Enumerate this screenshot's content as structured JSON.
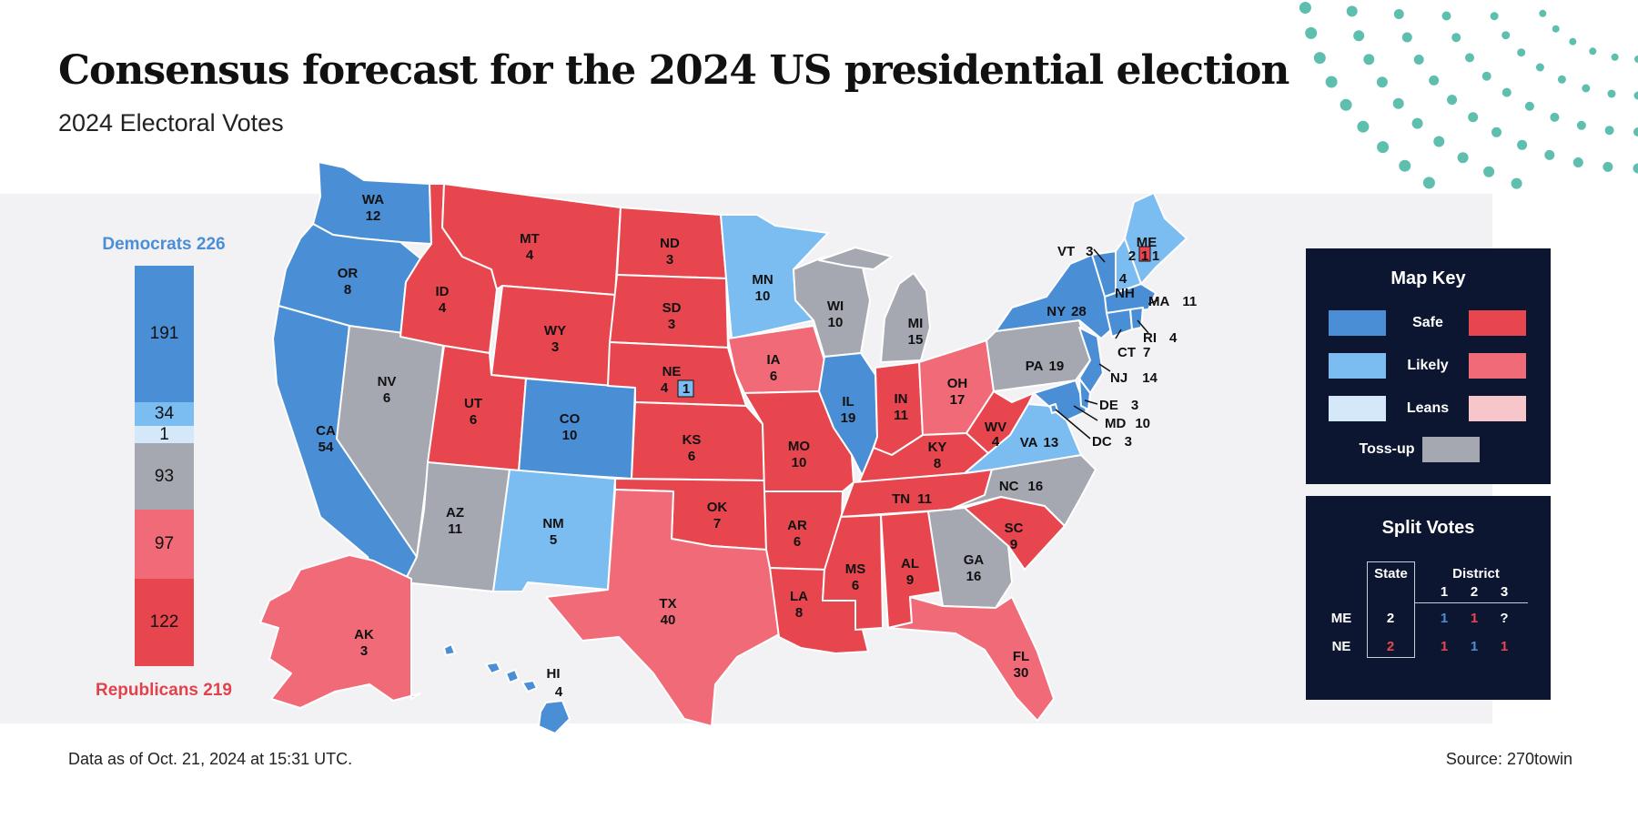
{
  "title": "Consensus forecast for the 2024 US presidential election",
  "subtitle": "2024 Electoral Votes",
  "colors": {
    "safe_dem": "#4a8fd6",
    "likely_dem": "#7bbcf1",
    "leans_dem": "#d4e8f9",
    "safe_rep": "#e8464e",
    "likely_rep": "#f06a77",
    "leans_rep": "#f7c6cb",
    "tossup": "#a5a8b1",
    "panel_bg": "#0d1630",
    "dots": "#5fbfae"
  },
  "tally": {
    "democrats_label": "Democrats 226",
    "republicans_label": "Republicans 219",
    "segments": [
      {
        "value": 191,
        "label": "191",
        "category": "safe_dem"
      },
      {
        "value": 34,
        "label": "34",
        "category": "likely_dem"
      },
      {
        "value": 1,
        "label": "1",
        "category": "leans_dem"
      },
      {
        "value": 93,
        "label": "93",
        "category": "tossup"
      },
      {
        "value": 97,
        "label": "97",
        "category": "likely_rep"
      },
      {
        "value": 122,
        "label": "122",
        "category": "safe_rep"
      }
    ]
  },
  "states": {
    "WA": {
      "abbr": "WA",
      "ev": "12",
      "category": "safe_dem"
    },
    "OR": {
      "abbr": "OR",
      "ev": "8",
      "category": "safe_dem"
    },
    "CA": {
      "abbr": "CA",
      "ev": "54",
      "category": "safe_dem"
    },
    "NV": {
      "abbr": "NV",
      "ev": "6",
      "category": "tossup"
    },
    "ID": {
      "abbr": "ID",
      "ev": "4",
      "category": "safe_rep"
    },
    "MT": {
      "abbr": "MT",
      "ev": "4",
      "category": "safe_rep"
    },
    "WY": {
      "abbr": "WY",
      "ev": "3",
      "category": "safe_rep"
    },
    "UT": {
      "abbr": "UT",
      "ev": "6",
      "category": "safe_rep"
    },
    "AZ": {
      "abbr": "AZ",
      "ev": "11",
      "category": "tossup"
    },
    "CO": {
      "abbr": "CO",
      "ev": "10",
      "category": "safe_dem"
    },
    "NM": {
      "abbr": "NM",
      "ev": "5",
      "category": "likely_dem"
    },
    "ND": {
      "abbr": "ND",
      "ev": "3",
      "category": "safe_rep"
    },
    "SD": {
      "abbr": "SD",
      "ev": "3",
      "category": "safe_rep"
    },
    "NE": {
      "abbr": "NE",
      "ev": "4",
      "district_ev": "1",
      "category": "safe_rep"
    },
    "KS": {
      "abbr": "KS",
      "ev": "6",
      "category": "safe_rep"
    },
    "OK": {
      "abbr": "OK",
      "ev": "7",
      "category": "safe_rep"
    },
    "TX": {
      "abbr": "TX",
      "ev": "40",
      "category": "likely_rep"
    },
    "MN": {
      "abbr": "MN",
      "ev": "10",
      "category": "likely_dem"
    },
    "IA": {
      "abbr": "IA",
      "ev": "6",
      "category": "likely_rep"
    },
    "MO": {
      "abbr": "MO",
      "ev": "10",
      "category": "safe_rep"
    },
    "AR": {
      "abbr": "AR",
      "ev": "6",
      "category": "safe_rep"
    },
    "LA": {
      "abbr": "LA",
      "ev": "8",
      "category": "safe_rep"
    },
    "WI": {
      "abbr": "WI",
      "ev": "10",
      "category": "tossup"
    },
    "IL": {
      "abbr": "IL",
      "ev": "19",
      "category": "safe_dem"
    },
    "MI": {
      "abbr": "MI",
      "ev": "15",
      "category": "tossup"
    },
    "IN": {
      "abbr": "IN",
      "ev": "11",
      "category": "safe_rep"
    },
    "OH": {
      "abbr": "OH",
      "ev": "17",
      "category": "likely_rep"
    },
    "KY": {
      "abbr": "KY",
      "ev": "8",
      "category": "safe_rep"
    },
    "TN": {
      "abbr": "TN",
      "ev": "11",
      "category": "safe_rep"
    },
    "MS": {
      "abbr": "MS",
      "ev": "6",
      "category": "safe_rep"
    },
    "AL": {
      "abbr": "AL",
      "ev": "9",
      "category": "safe_rep"
    },
    "GA": {
      "abbr": "GA",
      "ev": "16",
      "category": "tossup"
    },
    "FL": {
      "abbr": "FL",
      "ev": "30",
      "category": "likely_rep"
    },
    "SC": {
      "abbr": "SC",
      "ev": "9",
      "category": "safe_rep"
    },
    "NC": {
      "abbr": "NC",
      "ev": "16",
      "category": "tossup"
    },
    "VA": {
      "abbr": "VA",
      "ev": "13",
      "category": "likely_dem"
    },
    "WV": {
      "abbr": "WV",
      "ev": "4",
      "category": "safe_rep"
    },
    "PA": {
      "abbr": "PA",
      "ev": "19",
      "category": "tossup"
    },
    "NY": {
      "abbr": "NY",
      "ev": "28",
      "category": "safe_dem"
    },
    "VT": {
      "abbr": "VT",
      "ev": "3",
      "category": "safe_dem"
    },
    "NH": {
      "abbr": "NH",
      "ev": "4",
      "category": "likely_dem"
    },
    "ME": {
      "abbr": "ME",
      "ev": "2",
      "district_1": "1",
      "district_2": "1",
      "category": "likely_dem"
    },
    "MA": {
      "abbr": "MA",
      "ev": "11",
      "category": "safe_dem"
    },
    "RI": {
      "abbr": "RI",
      "ev": "4",
      "category": "safe_dem"
    },
    "CT": {
      "abbr": "CT",
      "ev": "7",
      "category": "safe_dem"
    },
    "NJ": {
      "abbr": "NJ",
      "ev": "14",
      "category": "safe_dem"
    },
    "DE": {
      "abbr": "DE",
      "ev": "3",
      "category": "safe_dem"
    },
    "MD": {
      "abbr": "MD",
      "ev": "10",
      "category": "safe_dem"
    },
    "DC": {
      "abbr": "DC",
      "ev": "3",
      "category": "safe_dem"
    },
    "AK": {
      "abbr": "AK",
      "ev": "3",
      "category": "likely_rep"
    },
    "HI": {
      "abbr": "HI",
      "ev": "4",
      "category": "safe_dem"
    }
  },
  "map_key": {
    "title": "Map Key",
    "safe": "Safe",
    "likely": "Likely",
    "leans": "Leans",
    "tossup": "Toss-up"
  },
  "split_votes": {
    "title": "Split Votes",
    "state_header": "State",
    "district_header": "District",
    "district_columns": [
      "1",
      "2",
      "3"
    ],
    "rows": [
      {
        "state": "ME",
        "state_votes": "2",
        "districts": [
          "1",
          "1",
          "?"
        ]
      },
      {
        "state": "NE",
        "state_votes": "2",
        "districts": [
          "1",
          "1",
          "1"
        ]
      }
    ]
  },
  "footer": {
    "data_as_of": "Data as of Oct. 21, 2024 at 15:31 UTC.",
    "source": "Source: 270towin"
  }
}
